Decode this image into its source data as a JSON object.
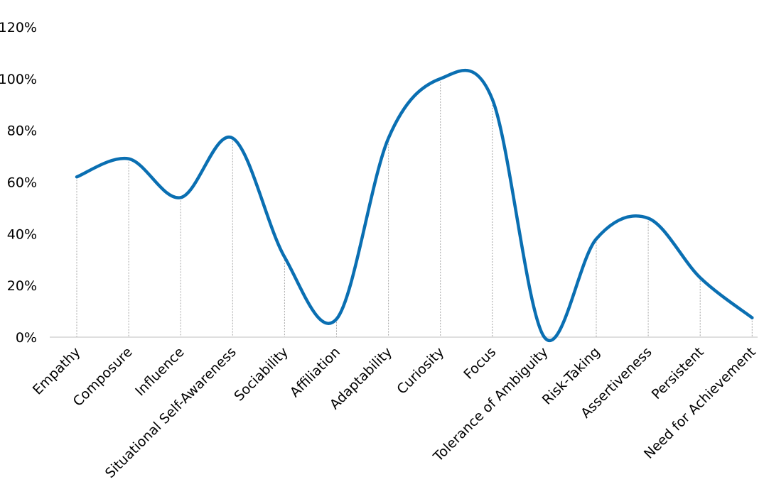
{
  "chart_data": {
    "type": "line",
    "title": "",
    "xlabel": "",
    "ylabel": "",
    "ylim": [
      0,
      120
    ],
    "y_ticks": [
      "0%",
      "20%",
      "40%",
      "60%",
      "80%",
      "100%",
      "120%"
    ],
    "y_tick_values": [
      0,
      20,
      40,
      60,
      80,
      100,
      120
    ],
    "categories": [
      "Empathy",
      "Composure",
      "Influence",
      "Situational Self-Awareness",
      "Sociability",
      "Affiliation",
      "Adaptability",
      "Curiosity",
      "Focus",
      "Tolerance of Ambiguity",
      "Risk-Taking",
      "Assertiveness",
      "Persistent",
      "Need for Achievement"
    ],
    "series": [
      {
        "values": [
          62,
          69,
          54,
          77,
          31,
          7,
          77,
          100,
          92,
          0,
          38,
          46,
          23,
          7.5
        ],
        "color": "#0a6fb2",
        "smooth": true
      }
    ],
    "drop_lines": true,
    "drop_line_color": "#a6a6a6",
    "grid": false,
    "legend": "none"
  }
}
